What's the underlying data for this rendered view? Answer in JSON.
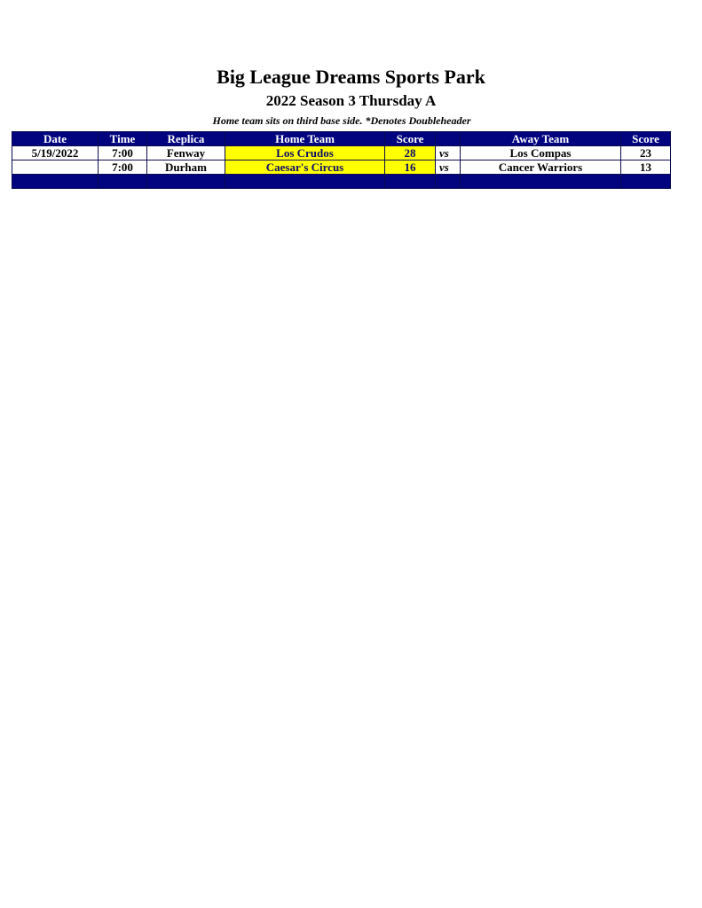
{
  "title": "Big League Dreams Sports Park",
  "subtitle": "2022 Season 3 Thursday A",
  "note": "Home team sits on third base side.  *Denotes Doubleheader",
  "headers": [
    "Date",
    "Time",
    "Replica",
    "Home Team",
    "Score",
    "",
    "Away Team",
    "Score"
  ],
  "rows": [
    {
      "date": "5/19/2022",
      "time": "7:00",
      "replica": "Fenway",
      "home": "Los Crudos",
      "home_score": "28",
      "vs": "vs",
      "away": "Los Compas",
      "away_score": "23"
    },
    {
      "date": "",
      "time": "7:00",
      "replica": "Durham",
      "home": "Caesar's Circus",
      "home_score": "16",
      "vs": "vs",
      "away": "Cancer Warriors",
      "away_score": "13"
    }
  ],
  "colors": {
    "header": "#01037f",
    "highlight": "#ffff00"
  }
}
